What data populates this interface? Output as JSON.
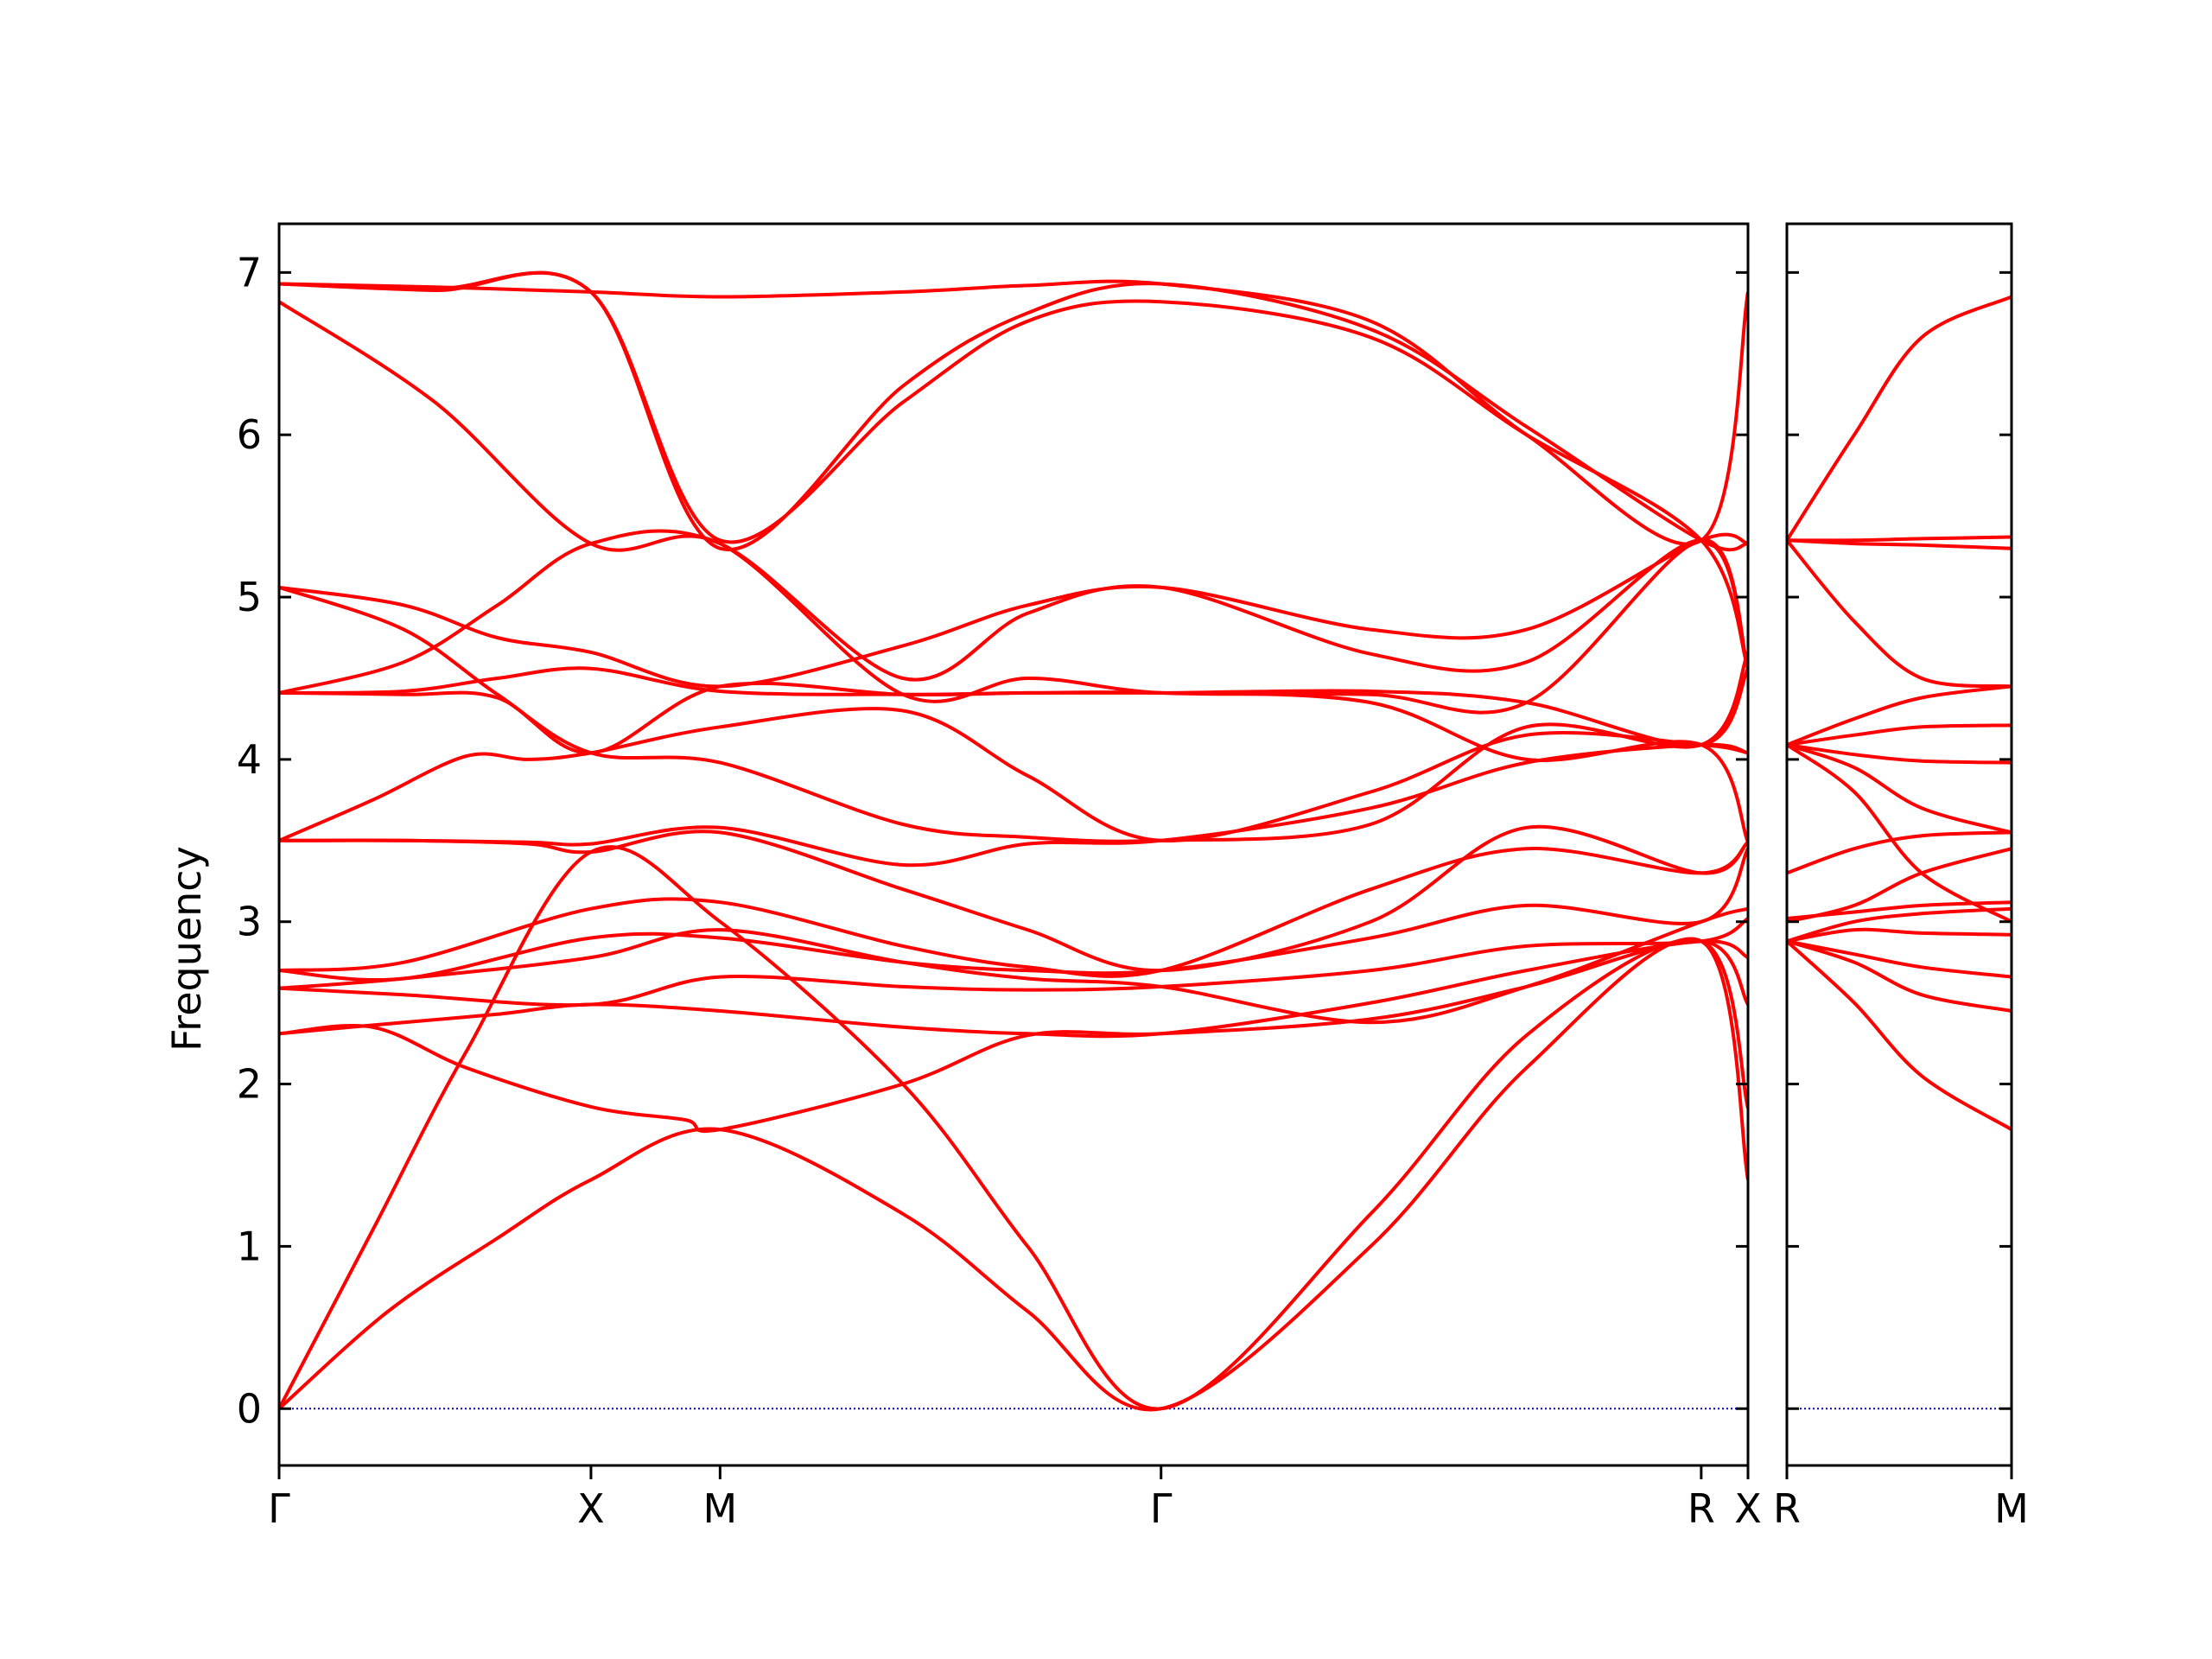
{
  "chart_data": {
    "type": "line",
    "title": "",
    "ylabel": "Frequency",
    "ylim": [
      -0.35,
      7.3
    ],
    "yticks": [
      0,
      1,
      2,
      3,
      4,
      5,
      6,
      7
    ],
    "grid": false,
    "legend": "none",
    "colors": {
      "bands": "#ff0000",
      "zero_line": "#0000cc",
      "axes": "#000000"
    },
    "panels": [
      {
        "name": "main",
        "xlim": [
          0,
          4.71
        ],
        "ticks": [
          {
            "x": 0,
            "label": "Γ"
          },
          {
            "x": 1.0,
            "label": "X"
          },
          {
            "x": 1.414,
            "label": "M"
          },
          {
            "x": 2.828,
            "label": "Γ"
          },
          {
            "x": 4.56,
            "label": "R"
          },
          {
            "x": 4.71,
            "label": "X"
          }
        ],
        "series": [
          {
            "x": [
              0,
              0.35,
              0.7,
              1.0,
              1.414,
              2.0,
              2.4,
              2.828,
              3.5,
              4.0,
              4.56,
              4.71
            ],
            "y": [
              0,
              0.6,
              1.05,
              1.41,
              1.72,
              1.2,
              0.6,
              0,
              1.0,
              2.1,
              2.88,
              1.41
            ]
          },
          {
            "x": [
              0,
              0.3,
              0.6,
              1.0,
              1.414,
              2.0,
              2.4,
              2.828,
              3.5,
              4.0,
              4.56,
              4.71
            ],
            "y": [
              0,
              1.1,
              2.2,
              3.43,
              3.0,
              2.0,
              1.0,
              0,
              1.2,
              2.3,
              2.88,
              1.85
            ]
          },
          {
            "x": [
              0,
              0.3,
              0.6,
              1.0,
              1.3,
              1.414,
              2.0,
              2.4,
              2.828,
              3.5,
              4.0,
              4.56,
              4.71
            ],
            "y": [
              2.31,
              2.35,
              2.1,
              1.86,
              1.78,
              1.72,
              2.0,
              2.3,
              2.31,
              2.4,
              2.6,
              2.88,
              2.49
            ]
          },
          {
            "x": [
              0,
              0.4,
              0.7,
              1.0,
              1.414,
              2.0,
              2.4,
              2.828,
              3.5,
              4.0,
              4.56,
              4.71
            ],
            "y": [
              2.31,
              2.38,
              2.43,
              2.49,
              2.45,
              2.35,
              2.31,
              2.31,
              2.5,
              2.7,
              2.88,
              2.78
            ]
          },
          {
            "x": [
              0,
              0.4,
              1.0,
              1.414,
              2.0,
              2.4,
              2.828,
              3.5,
              4.0,
              4.56,
              4.71
            ],
            "y": [
              2.59,
              2.55,
              2.49,
              2.66,
              2.6,
              2.58,
              2.6,
              2.7,
              2.85,
              2.88,
              3.02
            ]
          },
          {
            "x": [
              0,
              0.4,
              1.0,
              1.414,
              2.0,
              2.4,
              2.828,
              3.5,
              4.0,
              4.56,
              4.71
            ],
            "y": [
              2.59,
              2.65,
              2.78,
              2.95,
              2.75,
              2.65,
              2.6,
              2.38,
              2.6,
              3.0,
              3.08
            ]
          },
          {
            "x": [
              0,
              0.4,
              1.0,
              1.414,
              2.0,
              2.4,
              2.828,
              3.5,
              4.0,
              4.56,
              4.71
            ],
            "y": [
              2.7,
              2.65,
              2.9,
              2.9,
              2.75,
              2.7,
              2.7,
              2.9,
              3.1,
              3.0,
              3.45
            ]
          },
          {
            "x": [
              0,
              0.4,
              1.0,
              1.414,
              2.0,
              2.4,
              2.828,
              3.5,
              4.0,
              4.56,
              4.71
            ],
            "y": [
              2.7,
              2.75,
              3.08,
              3.12,
              2.85,
              2.72,
              2.7,
              3.2,
              3.45,
              3.3,
              3.49
            ]
          },
          {
            "x": [
              0,
              0.4,
              0.8,
              1.0,
              1.414,
              2.0,
              2.4,
              2.828,
              3.5,
              4.0,
              4.56,
              4.71
            ],
            "y": [
              3.5,
              3.5,
              3.48,
              3.43,
              3.55,
              3.2,
              2.95,
              2.7,
              3.0,
              3.58,
              3.3,
              3.49
            ]
          },
          {
            "x": [
              0,
              0.4,
              0.8,
              1.0,
              1.414,
              2.0,
              2.4,
              2.828,
              3.5,
              4.0,
              4.56,
              4.71
            ],
            "y": [
              3.5,
              3.5,
              3.49,
              3.48,
              3.58,
              3.35,
              3.48,
              3.5,
              3.7,
              3.98,
              4.09,
              4.04
            ]
          },
          {
            "x": [
              0,
              0.3,
              0.6,
              0.8,
              1.0,
              1.414,
              2.0,
              2.4,
              2.828,
              3.5,
              4.0,
              4.56,
              4.71
            ],
            "y": [
              3.5,
              3.75,
              4.02,
              4.0,
              4.04,
              4.2,
              4.3,
              3.9,
              3.5,
              3.8,
              4.15,
              4.09,
              4.04
            ]
          },
          {
            "x": [
              0,
              0.4,
              0.7,
              1.0,
              1.414,
              2.0,
              2.4,
              2.828,
              3.5,
              4.0,
              4.56,
              4.71
            ],
            "y": [
              4.41,
              4.4,
              4.38,
              4.04,
              4.45,
              4.4,
              4.41,
              4.41,
              4.35,
              4.0,
              4.09,
              3.49
            ]
          },
          {
            "x": [
              0,
              0.4,
              0.7,
              1.0,
              1.414,
              2.0,
              2.4,
              2.828,
              3.5,
              4.0,
              4.56,
              4.71
            ],
            "y": [
              4.41,
              4.42,
              4.5,
              4.56,
              4.42,
              4.4,
              4.41,
              4.41,
              4.42,
              4.35,
              4.09,
              4.56
            ]
          },
          {
            "x": [
              0,
              0.4,
              0.7,
              1.0,
              1.414,
              2.0,
              2.4,
              2.828,
              3.5,
              4.0,
              4.56,
              4.71
            ],
            "y": [
              5.06,
              4.8,
              4.4,
              4.04,
              3.98,
              3.6,
              3.52,
              3.5,
              3.6,
              4.2,
              4.09,
              4.66
            ]
          },
          {
            "x": [
              0,
              0.4,
              0.7,
              1.0,
              1.414,
              2.0,
              2.4,
              2.828,
              3.5,
              4.0,
              4.56,
              4.71
            ],
            "y": [
              5.06,
              4.95,
              4.75,
              4.66,
              4.45,
              4.7,
              4.95,
              5.06,
              4.8,
              4.8,
              5.35,
              5.33
            ]
          },
          {
            "x": [
              0,
              0.4,
              0.7,
              1.0,
              1.414,
              2.0,
              2.4,
              2.828,
              3.5,
              4.0,
              4.56,
              4.71
            ],
            "y": [
              4.41,
              4.6,
              4.95,
              5.33,
              5.33,
              4.5,
              4.9,
              5.06,
              4.65,
              4.6,
              5.35,
              4.56
            ]
          },
          {
            "x": [
              0,
              0.5,
              1.0,
              1.414,
              2.0,
              2.4,
              2.828,
              3.5,
              4.0,
              4.56,
              4.71
            ],
            "y": [
              6.82,
              6.2,
              5.33,
              5.33,
              4.4,
              4.5,
              4.41,
              4.4,
              4.35,
              5.35,
              4.56
            ]
          },
          {
            "x": [
              0,
              0.5,
              1.0,
              1.414,
              2.0,
              2.4,
              2.828,
              3.5,
              4.0,
              4.56,
              4.71
            ],
            "y": [
              6.93,
              6.9,
              6.88,
              5.35,
              6.2,
              6.7,
              6.82,
              6.6,
              6.0,
              5.35,
              4.56
            ]
          },
          {
            "x": [
              0,
              0.5,
              1.0,
              1.414,
              2.0,
              2.4,
              2.828,
              3.5,
              4.0,
              4.56,
              4.71
            ],
            "y": [
              6.93,
              6.91,
              6.88,
              6.85,
              6.88,
              6.92,
              6.93,
              6.7,
              6.0,
              5.35,
              6.88
            ]
          },
          {
            "x": [
              0,
              0.5,
              1.0,
              1.414,
              2.0,
              2.4,
              2.828,
              3.5,
              4.0,
              4.56,
              4.71
            ],
            "y": [
              6.93,
              6.89,
              6.88,
              5.3,
              6.3,
              6.75,
              6.93,
              6.65,
              6.05,
              5.35,
              5.33
            ]
          }
        ]
      },
      {
        "name": "side",
        "xlim": [
          0,
          1
        ],
        "ticks": [
          {
            "x": 0,
            "label": "R"
          },
          {
            "x": 1,
            "label": "M"
          }
        ],
        "series": [
          {
            "x": [
              0,
              0.3,
              0.6,
              1
            ],
            "y": [
              2.88,
              2.5,
              2.05,
              1.72
            ]
          },
          {
            "x": [
              0,
              0.3,
              0.6,
              1
            ],
            "y": [
              2.88,
              2.75,
              2.55,
              2.45
            ]
          },
          {
            "x": [
              0,
              0.3,
              0.6,
              1
            ],
            "y": [
              2.88,
              2.8,
              2.72,
              2.66
            ]
          },
          {
            "x": [
              0,
              0.3,
              0.6,
              1
            ],
            "y": [
              2.88,
              2.95,
              2.93,
              2.92
            ]
          },
          {
            "x": [
              0,
              0.3,
              0.6,
              1
            ],
            "y": [
              2.88,
              3.0,
              3.05,
              3.08
            ]
          },
          {
            "x": [
              0,
              0.3,
              0.6,
              1
            ],
            "y": [
              3.02,
              3.06,
              3.1,
              3.12
            ]
          },
          {
            "x": [
              0,
              0.3,
              0.6,
              1
            ],
            "y": [
              3.0,
              3.1,
              3.3,
              3.45
            ]
          },
          {
            "x": [
              0,
              0.3,
              0.6,
              1
            ],
            "y": [
              3.3,
              3.45,
              3.53,
              3.55
            ]
          },
          {
            "x": [
              0,
              0.3,
              0.6,
              1
            ],
            "y": [
              4.09,
              3.8,
              3.3,
              3.0
            ]
          },
          {
            "x": [
              0,
              0.3,
              0.6,
              1
            ],
            "y": [
              4.09,
              3.95,
              3.7,
              3.55
            ]
          },
          {
            "x": [
              0,
              0.3,
              0.6,
              1
            ],
            "y": [
              4.09,
              4.03,
              3.99,
              3.98
            ]
          },
          {
            "x": [
              0,
              0.3,
              0.6,
              1
            ],
            "y": [
              4.09,
              4.15,
              4.2,
              4.21
            ]
          },
          {
            "x": [
              0,
              0.3,
              0.6,
              1
            ],
            "y": [
              4.09,
              4.25,
              4.38,
              4.45
            ]
          },
          {
            "x": [
              0,
              0.3,
              0.6,
              1
            ],
            "y": [
              5.35,
              4.85,
              4.5,
              4.45
            ]
          },
          {
            "x": [
              0,
              0.3,
              0.6,
              1
            ],
            "y": [
              5.35,
              5.33,
              5.32,
              5.3
            ]
          },
          {
            "x": [
              0,
              0.3,
              0.6,
              1
            ],
            "y": [
              5.35,
              5.35,
              5.36,
              5.37
            ]
          },
          {
            "x": [
              0,
              0.3,
              0.6,
              1
            ],
            "y": [
              5.35,
              6.0,
              6.6,
              6.85
            ]
          }
        ]
      }
    ]
  }
}
